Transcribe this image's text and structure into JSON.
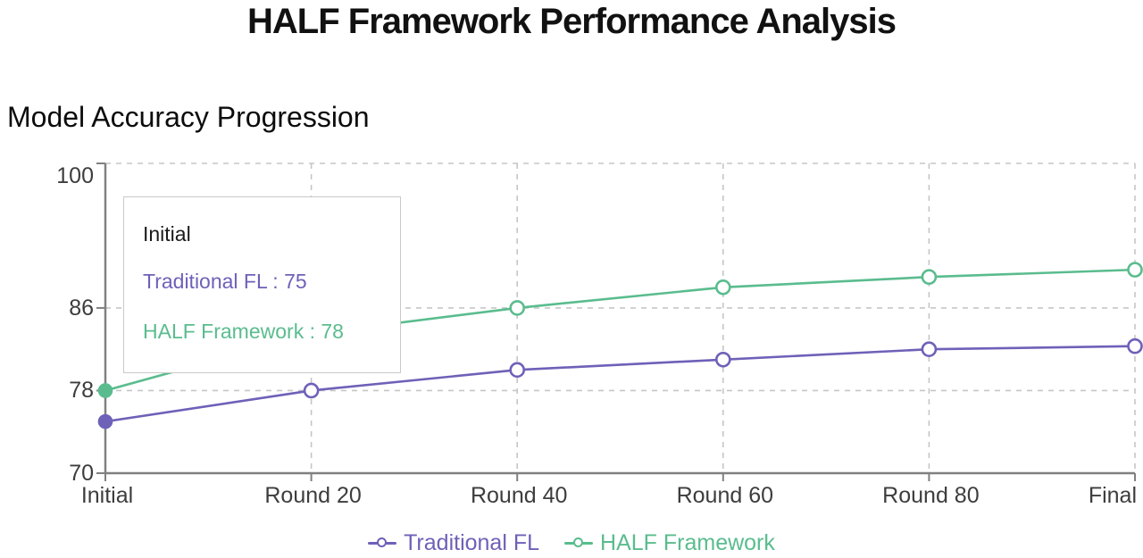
{
  "page": {
    "title": "HALF Framework Performance Analysis"
  },
  "chart_data": {
    "type": "line",
    "title": "Model Accuracy Progression",
    "categories": [
      "Initial",
      "Round 20",
      "Round 40",
      "Round 60",
      "Round 80",
      "Final"
    ],
    "series": [
      {
        "name": "Traditional FL",
        "color": "#6e61b8",
        "values": [
          75,
          78,
          80,
          81,
          82,
          82.3
        ]
      },
      {
        "name": "HALF Framework",
        "color": "#5abc8e",
        "values": [
          78,
          83.5,
          86,
          88,
          89,
          89.7
        ]
      }
    ],
    "y_axis": {
      "min": 70,
      "max": 100,
      "ticks": [
        70,
        78,
        86,
        100
      ]
    },
    "x_label": "",
    "y_label": "",
    "grid": "dashed",
    "legend_position": "bottom",
    "hovered_category": "Initial"
  },
  "tooltip": {
    "title": "Initial",
    "rows": [
      {
        "text": "Traditional FL : 75"
      },
      {
        "text": "HALF Framework : 78"
      }
    ]
  },
  "colors": {
    "axis_line": "#808080",
    "gridline": "#c6c6c6",
    "tick_text": "#3d3d3d",
    "tooltip_border": "#c9c9c9"
  }
}
